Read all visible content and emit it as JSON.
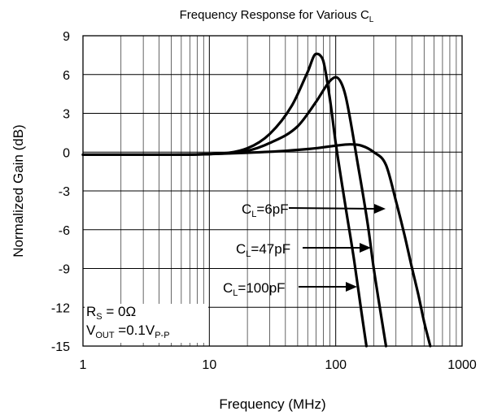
{
  "chart_data": {
    "type": "line",
    "title": "Frequency Response for Various C",
    "title_sub": "L",
    "xlabel": "Frequency (MHz)",
    "ylabel": "Normalized Gain (dB)",
    "x_scale": "log",
    "xlim": [
      1,
      1000
    ],
    "ylim": [
      -15,
      9
    ],
    "x_ticks": [
      1,
      10,
      100,
      1000
    ],
    "x_tick_labels": [
      "1",
      "10",
      "100",
      "1000"
    ],
    "y_ticks": [
      -15,
      -12,
      -9,
      -6,
      -3,
      0,
      3,
      6,
      9
    ],
    "y_tick_labels": [
      "-15",
      "-12",
      "-9",
      "-6",
      "-3",
      "0",
      "3",
      "6",
      "9"
    ],
    "grid": true,
    "series": [
      {
        "name": "C=6pF",
        "label_main": "C",
        "label_sub": "L",
        "label_rest": "=6pF",
        "x": [
          1,
          5,
          10,
          20,
          40,
          70,
          100,
          130,
          160,
          200,
          250,
          300,
          350,
          400,
          450,
          500,
          560
        ],
        "y": [
          -0.2,
          -0.2,
          -0.15,
          -0.05,
          0.1,
          0.3,
          0.5,
          0.6,
          0.5,
          0.0,
          -1.0,
          -3.8,
          -6.4,
          -8.9,
          -11.0,
          -13.1,
          -15.0
        ]
      },
      {
        "name": "C=47pF",
        "label_main": "C",
        "label_sub": "L",
        "label_rest": "=47pF",
        "x": [
          1,
          5,
          10,
          20,
          30,
          50,
          70,
          90,
          100,
          110,
          120,
          150,
          180,
          200,
          230,
          250
        ],
        "y": [
          -0.2,
          -0.2,
          -0.15,
          0.1,
          0.7,
          2.0,
          3.9,
          5.5,
          5.8,
          5.4,
          4.3,
          -1.0,
          -5.7,
          -9.0,
          -12.8,
          -15.0
        ]
      },
      {
        "name": "C=100pF",
        "label_main": "C",
        "label_sub": "L",
        "label_rest": "=100pF",
        "x": [
          1,
          5,
          10,
          20,
          30,
          45,
          60,
          70,
          75,
          80,
          90,
          100,
          120,
          140,
          160,
          175
        ],
        "y": [
          -0.2,
          -0.2,
          -0.15,
          0.3,
          1.4,
          3.6,
          6.2,
          7.6,
          7.5,
          7.0,
          4.1,
          0.7,
          -4.3,
          -8.4,
          -12.4,
          -15.0
        ]
      }
    ],
    "annotations": {
      "line1": {
        "main": "R",
        "sub": "S",
        "rest": " = 0Ω"
      },
      "line2": {
        "main": "V",
        "sub": "OUT",
        "rest": " =0.1V",
        "sub2": "P-P"
      }
    }
  }
}
